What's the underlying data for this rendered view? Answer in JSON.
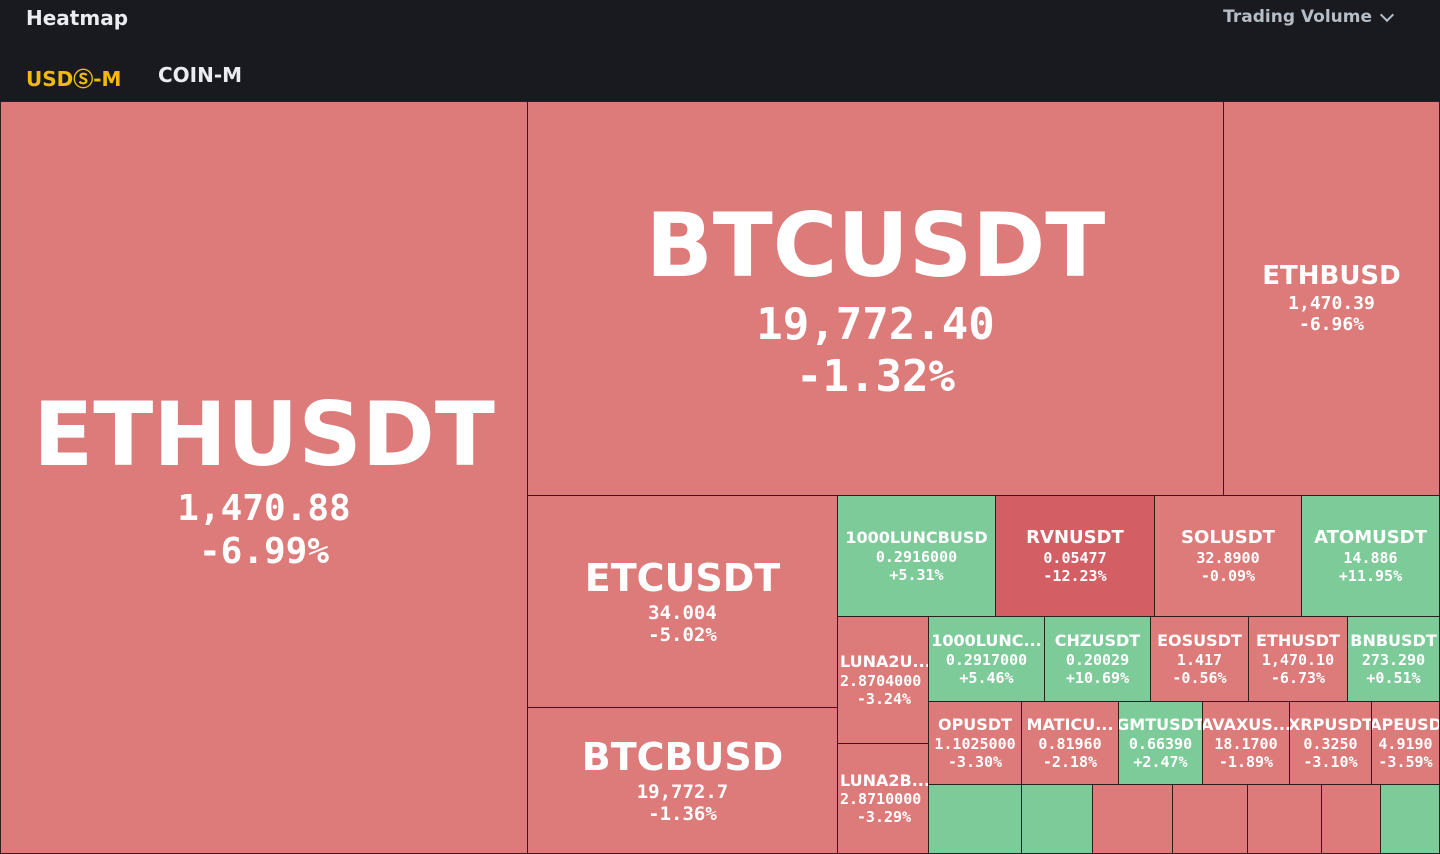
{
  "header": {
    "title": "Heatmap",
    "metric_selector": "Trading Volume",
    "tabs": [
      {
        "label": "USDⓈ-M",
        "active": true
      },
      {
        "label": "COIN-M",
        "active": false
      }
    ]
  },
  "colors": {
    "background": "#181a20",
    "down": "#dc7b79",
    "strong_down": "#d35f65",
    "up": "#7ecb9a",
    "active_tab": "#f0b90b"
  },
  "tiles": {
    "ethusdt": {
      "symbol": "ETHUSDT",
      "price": "1,470.88",
      "change": "-6.99%"
    },
    "btcusdt": {
      "symbol": "BTCUSDT",
      "price": "19,772.40",
      "change": "-1.32%"
    },
    "ethbusd": {
      "symbol": "ETHBUSD",
      "price": "1,470.39",
      "change": "-6.96%"
    },
    "etcusdt": {
      "symbol": "ETCUSDT",
      "price": "34.004",
      "change": "-5.02%"
    },
    "btcbusd": {
      "symbol": "BTCBUSD",
      "price": "19,772.7",
      "change": "-1.36%"
    },
    "lunc1000busd": {
      "symbol": "1000LUNCBUSD",
      "price": "0.2916000",
      "change": "+5.31%"
    },
    "rvnusdt": {
      "symbol": "RVNUSDT",
      "price": "0.05477",
      "change": "-12.23%"
    },
    "solusdt": {
      "symbol": "SOLUSDT",
      "price": "32.8900",
      "change": "-0.09%"
    },
    "atomusdt": {
      "symbol": "ATOMUSDT",
      "price": "14.886",
      "change": "+11.95%"
    },
    "luna2u": {
      "symbol": "LUNA2U...",
      "price": "2.8704000",
      "change": "-3.24%"
    },
    "lunc1000u": {
      "symbol": "1000LUNC...",
      "price": "0.2917000",
      "change": "+5.46%"
    },
    "chzusdt": {
      "symbol": "CHZUSDT",
      "price": "0.20029",
      "change": "+10.69%"
    },
    "eosusdt": {
      "symbol": "EOSUSDT",
      "price": "1.417",
      "change": "-0.56%"
    },
    "ethusdt2": {
      "symbol": "ETHUSDT",
      "price": "1,470.10",
      "change": "-6.73%"
    },
    "bnbusdt": {
      "symbol": "BNBUSDT",
      "price": "273.290",
      "change": "+0.51%"
    },
    "luna2b": {
      "symbol": "LUNA2B...",
      "price": "2.8710000",
      "change": "-3.29%"
    },
    "opusdt": {
      "symbol": "OPUSDT",
      "price": "1.1025000",
      "change": "-3.30%"
    },
    "maticu": {
      "symbol": "MATICU...",
      "price": "0.81960",
      "change": "-2.18%"
    },
    "gmtusdt": {
      "symbol": "GMTUSDT",
      "price": "0.66390",
      "change": "+2.47%"
    },
    "avaxus": {
      "symbol": "AVAXUS...",
      "price": "18.1700",
      "change": "-1.89%"
    },
    "xrpusdt": {
      "symbol": "XRPUSDT",
      "price": "0.3250",
      "change": "-3.10%"
    },
    "apeusdt": {
      "symbol": "APEUSD",
      "price": "4.9190",
      "change": "-3.59%"
    }
  }
}
